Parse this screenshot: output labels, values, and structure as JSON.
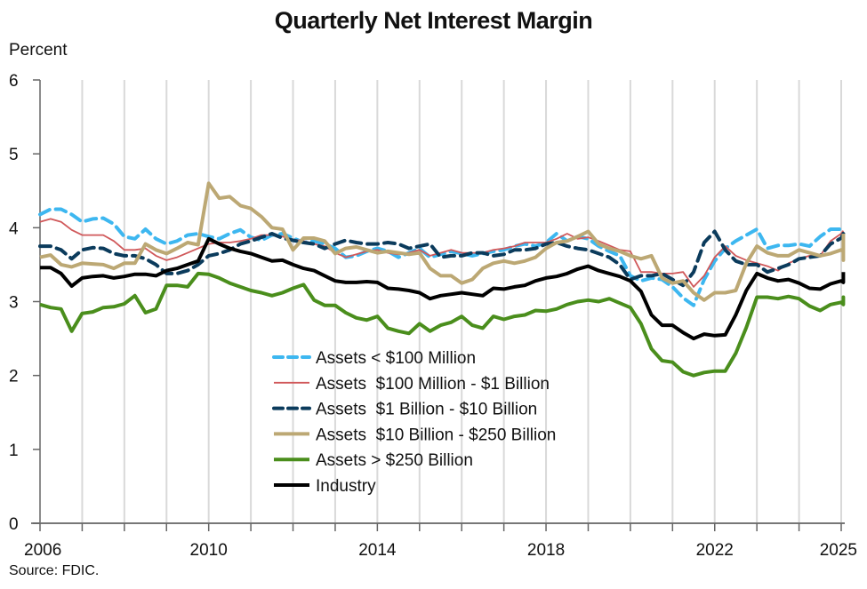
{
  "title": "Quarterly Net Interest Margin",
  "ylabel": "Percent",
  "source": "Source: FDIC.",
  "chart_data": {
    "type": "line",
    "title": "Quarterly Net Interest Margin",
    "xlabel": "",
    "ylabel": "Percent",
    "ylim": [
      0,
      6
    ],
    "yticks": [
      0,
      1,
      2,
      3,
      4,
      5,
      6
    ],
    "xlim": [
      2006,
      2025.25
    ],
    "xticks": [
      2006,
      2010,
      2014,
      2018,
      2022,
      2025
    ],
    "grid": "vertical yearly",
    "legend_position": "lower center inside plot",
    "x_start": 2006.0,
    "x_step": 0.25,
    "series": [
      {
        "name": "Assets < $100 Million",
        "color": "#3DB7F0",
        "style": "dashed",
        "width": 4,
        "values": [
          4.18,
          4.25,
          4.25,
          4.18,
          4.08,
          4.12,
          4.13,
          4.05,
          3.88,
          3.85,
          3.98,
          3.85,
          3.78,
          3.82,
          3.9,
          3.92,
          3.88,
          3.85,
          3.92,
          3.97,
          3.87,
          3.83,
          3.9,
          3.92,
          3.86,
          3.8,
          3.82,
          3.78,
          3.72,
          3.6,
          3.62,
          3.68,
          3.72,
          3.68,
          3.6,
          3.66,
          3.72,
          3.6,
          3.64,
          3.68,
          3.65,
          3.62,
          3.65,
          3.68,
          3.7,
          3.75,
          3.78,
          3.75,
          3.8,
          3.92,
          3.82,
          3.88,
          3.85,
          3.75,
          3.68,
          3.62,
          3.35,
          3.28,
          3.32,
          3.3,
          3.2,
          3.05,
          2.95,
          3.3,
          3.55,
          3.72,
          3.82,
          3.9,
          3.98,
          3.72,
          3.76,
          3.76,
          3.78,
          3.75,
          3.88,
          3.98,
          3.98
        ]
      },
      {
        "name": "Assets  $100 Million - $1 Billion",
        "color": "#D0585A",
        "style": "solid",
        "width": 1.8,
        "values": [
          4.08,
          4.12,
          4.08,
          3.97,
          3.9,
          3.9,
          3.9,
          3.82,
          3.7,
          3.7,
          3.72,
          3.62,
          3.56,
          3.6,
          3.66,
          3.72,
          3.78,
          3.8,
          3.8,
          3.82,
          3.85,
          3.9,
          3.9,
          3.88,
          3.84,
          3.82,
          3.78,
          3.75,
          3.66,
          3.6,
          3.64,
          3.68,
          3.7,
          3.66,
          3.64,
          3.66,
          3.7,
          3.62,
          3.66,
          3.7,
          3.66,
          3.66,
          3.66,
          3.7,
          3.72,
          3.75,
          3.8,
          3.8,
          3.8,
          3.85,
          3.92,
          3.85,
          3.87,
          3.82,
          3.76,
          3.7,
          3.68,
          3.4,
          3.4,
          3.38,
          3.38,
          3.4,
          3.2,
          3.35,
          3.6,
          3.75,
          3.62,
          3.56,
          3.52,
          3.48,
          3.42,
          3.52,
          3.58,
          3.62,
          3.62,
          3.82,
          3.92,
          3.96
        ]
      },
      {
        "name": "Assets  $1 Billion - $10 Billion",
        "color": "#0B3B5C",
        "style": "dashed",
        "width": 4,
        "values": [
          3.75,
          3.75,
          3.7,
          3.58,
          3.7,
          3.73,
          3.72,
          3.65,
          3.62,
          3.62,
          3.58,
          3.5,
          3.38,
          3.38,
          3.42,
          3.5,
          3.62,
          3.65,
          3.7,
          3.78,
          3.82,
          3.87,
          3.92,
          3.86,
          3.83,
          3.8,
          3.78,
          3.72,
          3.78,
          3.83,
          3.8,
          3.78,
          3.78,
          3.8,
          3.78,
          3.72,
          3.75,
          3.78,
          3.6,
          3.62,
          3.62,
          3.66,
          3.66,
          3.62,
          3.64,
          3.7,
          3.7,
          3.72,
          3.78,
          3.8,
          3.75,
          3.72,
          3.7,
          3.65,
          3.6,
          3.5,
          3.3,
          3.35,
          3.35,
          3.38,
          3.3,
          3.22,
          3.4,
          3.8,
          3.95,
          3.7,
          3.55,
          3.5,
          3.5,
          3.4,
          3.45,
          3.5,
          3.58,
          3.6,
          3.62,
          3.78,
          3.86,
          3.92
        ]
      },
      {
        "name": "Assets  $10 Billion - $250 Billion",
        "color": "#BCA874",
        "style": "solid",
        "width": 4,
        "values": [
          3.6,
          3.63,
          3.5,
          3.47,
          3.52,
          3.51,
          3.5,
          3.45,
          3.52,
          3.52,
          3.78,
          3.7,
          3.65,
          3.72,
          3.8,
          3.77,
          4.6,
          4.4,
          4.42,
          4.3,
          4.26,
          4.15,
          4.0,
          3.98,
          3.7,
          3.86,
          3.86,
          3.82,
          3.65,
          3.72,
          3.74,
          3.7,
          3.66,
          3.68,
          3.66,
          3.64,
          3.66,
          3.45,
          3.35,
          3.35,
          3.25,
          3.3,
          3.45,
          3.52,
          3.55,
          3.52,
          3.55,
          3.6,
          3.72,
          3.8,
          3.82,
          3.88,
          3.95,
          3.78,
          3.72,
          3.68,
          3.62,
          3.58,
          3.62,
          3.32,
          3.25,
          3.28,
          3.12,
          3.02,
          3.12,
          3.12,
          3.15,
          3.52,
          3.75,
          3.66,
          3.62,
          3.62,
          3.7,
          3.66,
          3.62,
          3.65,
          3.7,
          3.68,
          3.56,
          3.6,
          3.92
        ]
      },
      {
        "name": "Assets > $250 Billion",
        "color": "#4A8E1C",
        "style": "solid",
        "width": 4,
        "values": [
          2.96,
          2.92,
          2.9,
          2.6,
          2.84,
          2.86,
          2.92,
          2.93,
          2.97,
          3.08,
          2.85,
          2.9,
          3.22,
          3.22,
          3.2,
          3.38,
          3.37,
          3.32,
          3.25,
          3.2,
          3.15,
          3.12,
          3.08,
          3.12,
          3.18,
          3.23,
          3.02,
          2.95,
          2.95,
          2.85,
          2.78,
          2.75,
          2.8,
          2.64,
          2.6,
          2.57,
          2.7,
          2.6,
          2.68,
          2.72,
          2.8,
          2.68,
          2.64,
          2.8,
          2.76,
          2.8,
          2.82,
          2.88,
          2.87,
          2.9,
          2.96,
          3.0,
          3.02,
          3.0,
          3.04,
          2.98,
          2.92,
          2.7,
          2.36,
          2.2,
          2.18,
          2.05,
          2.0,
          2.04,
          2.06,
          2.06,
          2.3,
          2.65,
          3.06,
          3.06,
          3.04,
          3.07,
          3.04,
          2.94,
          2.88,
          2.96,
          2.99,
          2.96,
          3.0,
          3.06,
          3.04
        ]
      },
      {
        "name": "Industry",
        "color": "#000000",
        "style": "solid",
        "width": 4,
        "values": [
          3.46,
          3.46,
          3.38,
          3.21,
          3.32,
          3.34,
          3.35,
          3.32,
          3.34,
          3.37,
          3.37,
          3.35,
          3.42,
          3.45,
          3.5,
          3.55,
          3.85,
          3.78,
          3.72,
          3.68,
          3.65,
          3.6,
          3.55,
          3.56,
          3.5,
          3.45,
          3.42,
          3.35,
          3.28,
          3.26,
          3.26,
          3.27,
          3.26,
          3.18,
          3.17,
          3.15,
          3.12,
          3.04,
          3.08,
          3.1,
          3.12,
          3.1,
          3.08,
          3.18,
          3.17,
          3.2,
          3.22,
          3.28,
          3.32,
          3.34,
          3.38,
          3.44,
          3.48,
          3.42,
          3.38,
          3.34,
          3.28,
          3.14,
          2.82,
          2.68,
          2.68,
          2.58,
          2.5,
          2.56,
          2.54,
          2.55,
          2.82,
          3.15,
          3.38,
          3.32,
          3.28,
          3.3,
          3.25,
          3.18,
          3.17,
          3.24,
          3.28,
          3.26,
          3.28,
          3.34,
          3.4
        ]
      }
    ]
  },
  "legend": {
    "items": [
      {
        "label": "Assets < $100 Million"
      },
      {
        "label": "Assets  $100 Million - $1 Billion"
      },
      {
        "label": "Assets  $1 Billion - $10 Billion"
      },
      {
        "label": "Assets  $10 Billion - $250 Billion"
      },
      {
        "label": "Assets > $250 Billion"
      },
      {
        "label": "Industry"
      }
    ]
  }
}
